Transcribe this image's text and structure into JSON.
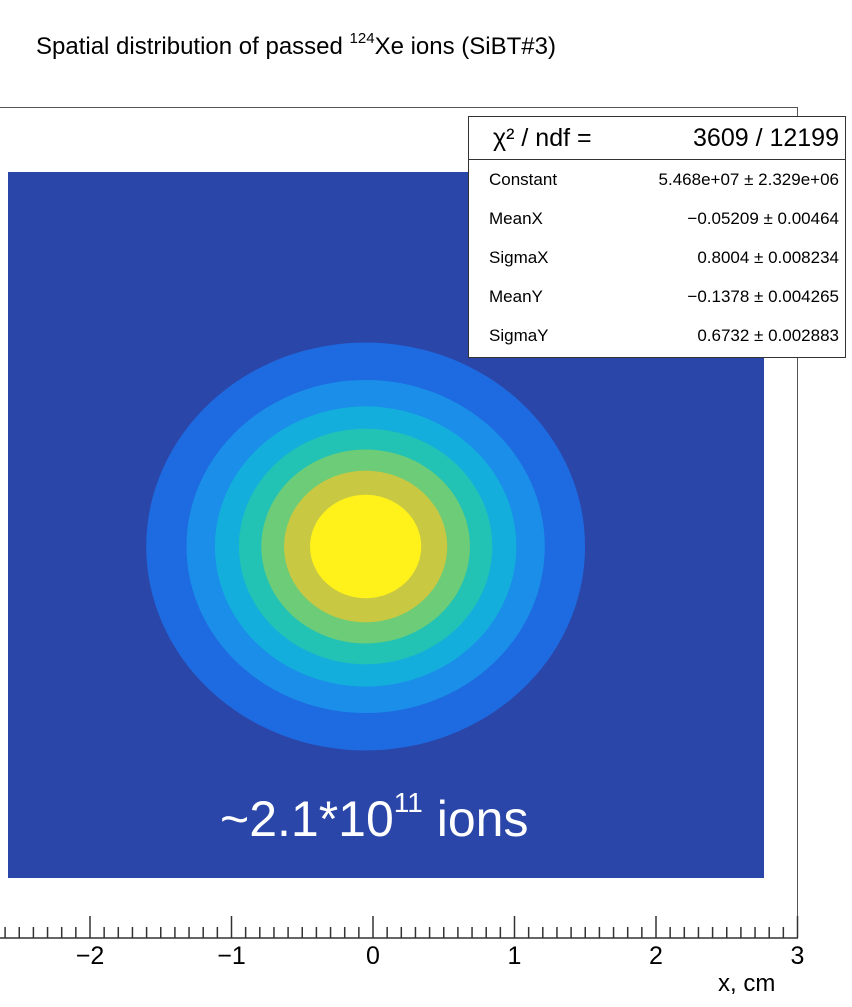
{
  "title": {
    "prefix": "Spatial distribution of passed ",
    "mass_number": "124",
    "suffix": "Xe ions (SiBT#3)"
  },
  "colors": {
    "background_fill": "#2a46a8",
    "peak": "#fff21a"
  },
  "stats_box": {
    "chi2_label": "χ² / ndf =",
    "chi2_value": "3609 / 12199",
    "rows": [
      {
        "name": "Constant",
        "value": "5.468e+07 ± 2.329e+06"
      },
      {
        "name": "MeanX",
        "value": "−0.05209 ± 0.00464"
      },
      {
        "name": "SigmaX",
        "value": "0.8004 ± 0.008234"
      },
      {
        "name": "MeanY",
        "value": "−0.1378 ± 0.004265"
      },
      {
        "name": "SigmaY",
        "value": "0.6732 ± 0.002883"
      }
    ]
  },
  "annotation": {
    "base": "~2.1*10",
    "exponent": "11",
    "suffix": " ions"
  },
  "chart_data": {
    "type": "heatmap",
    "title": "Spatial distribution of passed 124Xe ions (SiBT#3)",
    "xlabel": "x, cm",
    "ylabel": "",
    "x_ticks": [
      "−2",
      "−1",
      "0",
      "1",
      "2",
      "3"
    ],
    "xlim": [
      -2.6,
      3.0
    ],
    "fit": {
      "function": "2D Gaussian",
      "constant": 54680000,
      "mean_x": -0.05209,
      "sigma_x": 0.8004,
      "mean_y": -0.1378,
      "sigma_y": 0.6732
    },
    "levels": 8,
    "colormap": [
      "#2a46a8",
      "#1e6ae0",
      "#1a8ee8",
      "#14aedc",
      "#22c2b4",
      "#6ccc78",
      "#c8c842",
      "#fff21a"
    ]
  }
}
